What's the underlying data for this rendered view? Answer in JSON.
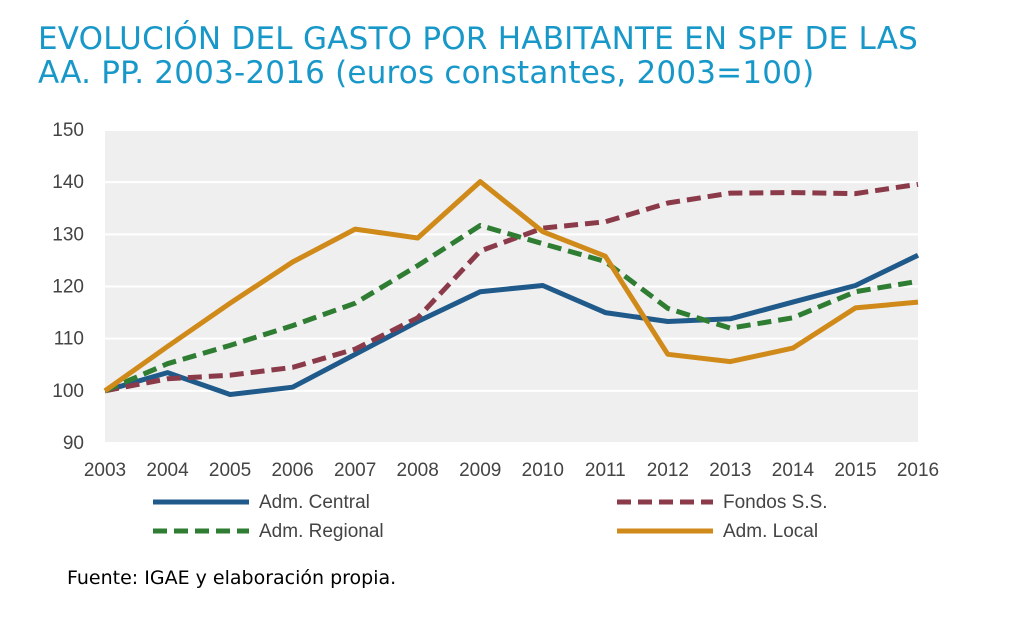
{
  "title_line1": "EVOLUCIÓN DEL GASTO POR HABITANTE EN SPF DE LAS",
  "title_line2": "AA. PP. 2003-2016 (euros constantes, 2003=100)",
  "source": "Fuente: IGAE y elaboración propia.",
  "chart_data": {
    "type": "line",
    "title": "EVOLUCIÓN DEL GASTO POR HABITANTE EN SPF DE LAS AA. PP. 2003-2016 (euros constantes, 2003=100)",
    "xlabel": "",
    "ylabel": "",
    "ylim": [
      90,
      150
    ],
    "yticks": [
      "90",
      "100",
      "110",
      "120",
      "130",
      "140",
      "150"
    ],
    "grid": true,
    "legend_position": "bottom",
    "categories": [
      "2003",
      "2004",
      "2005",
      "2006",
      "2007",
      "2008",
      "2009",
      "2010",
      "2011",
      "2012",
      "2013",
      "2014",
      "2015",
      "2016"
    ],
    "series": [
      {
        "name": "Adm. Central",
        "color": "#1f5a8a",
        "dash": "solid",
        "values": [
          100,
          103.5,
          99.3,
          100.7,
          107,
          113.3,
          119,
          120.2,
          115,
          113.3,
          113.8,
          117,
          120.2,
          126
        ]
      },
      {
        "name": "Fondos S.S.",
        "color": "#8b3a4a",
        "dash": "dashed",
        "values": [
          100,
          102.3,
          103,
          104.5,
          108,
          114,
          126.8,
          131.2,
          132.4,
          136,
          137.9,
          138,
          137.8,
          139.6
        ]
      },
      {
        "name": "Adm. Regional",
        "color": "#2e7d32",
        "dash": "dashed",
        "values": [
          100,
          105.2,
          108.7,
          112.5,
          116.8,
          124,
          131.7,
          128.2,
          124.8,
          115.8,
          112,
          114,
          119,
          121
        ]
      },
      {
        "name": "Adm. Local",
        "color": "#d08a1a",
        "dash": "solid",
        "values": [
          100,
          108.5,
          116.8,
          124.7,
          131,
          129.3,
          140.1,
          130.5,
          125.8,
          107,
          105.6,
          108.2,
          115.9,
          117
        ]
      }
    ]
  }
}
